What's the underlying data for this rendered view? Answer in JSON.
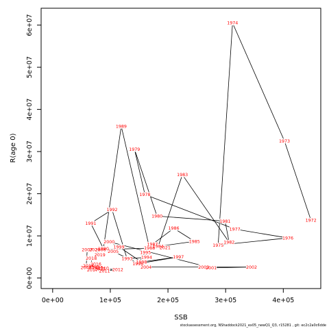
{
  "chart_data": {
    "type": "scatter",
    "xlabel": "SSB",
    "ylabel": "R(age 0)",
    "xlim": [
      -20000,
      465000
    ],
    "ylim": [
      -2500000,
      64000000
    ],
    "x_ticks": [
      0,
      100000,
      200000,
      300000,
      400000
    ],
    "x_tick_labels": [
      "0e+00",
      "1e+05",
      "2e+05",
      "3e+05",
      "4e+05"
    ],
    "y_ticks": [
      0,
      10000000,
      20000000,
      30000000,
      40000000,
      50000000,
      60000000
    ],
    "y_tick_labels": [
      "0e+00",
      "1e+07",
      "2e+07",
      "3e+07",
      "4e+07",
      "5e+07",
      "6e+07"
    ],
    "line_color": "#000000",
    "label_color": "#ff0000",
    "points": [
      {
        "year": "1972",
        "ssb": 448000,
        "rec": 13700000
      },
      {
        "year": "1973",
        "ssb": 402000,
        "rec": 32500000
      },
      {
        "year": "1974",
        "ssb": 312000,
        "rec": 60500000
      },
      {
        "year": "1975",
        "ssb": 287000,
        "rec": 7800000
      },
      {
        "year": "1976",
        "ssb": 408000,
        "rec": 9500000
      },
      {
        "year": "1977",
        "ssb": 316000,
        "rec": 11600000
      },
      {
        "year": "1978",
        "ssb": 160000,
        "rec": 19800000
      },
      {
        "year": "1979",
        "ssb": 142000,
        "rec": 30500000
      },
      {
        "year": "1980",
        "ssb": 181000,
        "rec": 14700000
      },
      {
        "year": "1981",
        "ssb": 299000,
        "rec": 13500000
      },
      {
        "year": "1982",
        "ssb": 306000,
        "rec": 8500000
      },
      {
        "year": "1983",
        "ssb": 225000,
        "rec": 24500000
      },
      {
        "year": "1984",
        "ssb": 183000,
        "rec": 7500000
      },
      {
        "year": "1985",
        "ssb": 246000,
        "rec": 8700000
      },
      {
        "year": "1986",
        "ssb": 210000,
        "rec": 11800000
      },
      {
        "year": "1987",
        "ssb": 173000,
        "rec": 8000000
      },
      {
        "year": "1988",
        "ssb": 168000,
        "rec": 7100000
      },
      {
        "year": "1989",
        "ssb": 119000,
        "rec": 36000000
      },
      {
        "year": "1990",
        "ssb": 88000,
        "rec": 7000000
      },
      {
        "year": "1991",
        "ssb": 66000,
        "rec": 13000000
      },
      {
        "year": "1992",
        "ssb": 103000,
        "rec": 16200000
      },
      {
        "year": "1993",
        "ssb": 129000,
        "rec": 4600000
      },
      {
        "year": "1994",
        "ssb": 163000,
        "rec": 4900000
      },
      {
        "year": "1995",
        "ssb": 161000,
        "rec": 6100000
      },
      {
        "year": "1996",
        "ssb": 148000,
        "rec": 3400000
      },
      {
        "year": "1997",
        "ssb": 218000,
        "rec": 5000000
      },
      {
        "year": "1998",
        "ssb": 154000,
        "rec": 3800000
      },
      {
        "year": "1999",
        "ssb": 115000,
        "rec": 7400000
      },
      {
        "year": "2000",
        "ssb": 98000,
        "rec": 8600000
      },
      {
        "year": "2001",
        "ssb": 275000,
        "rec": 2400000
      },
      {
        "year": "2002",
        "ssb": 345000,
        "rec": 2600000
      },
      {
        "year": "2003",
        "ssb": 262000,
        "rec": 2600000
      },
      {
        "year": "2004",
        "ssb": 162000,
        "rec": 2600000
      },
      {
        "year": "2005",
        "ssb": 105000,
        "rec": 6300000
      },
      {
        "year": "2006",
        "ssb": 83000,
        "rec": 6700000
      },
      {
        "year": "2007",
        "ssb": 60000,
        "rec": 6700000
      },
      {
        "year": "2008",
        "ssb": 58000,
        "rec": 2500000
      },
      {
        "year": "2009",
        "ssb": 72000,
        "rec": 2600000
      },
      {
        "year": "2010",
        "ssb": 88000,
        "rec": 2300000
      },
      {
        "year": "2011",
        "ssb": 90000,
        "rec": 1700000
      },
      {
        "year": "2012",
        "ssb": 113000,
        "rec": 2000000
      },
      {
        "year": "2013",
        "ssb": 82000,
        "rec": 2200000
      },
      {
        "year": "2014",
        "ssb": 62000,
        "rec": 2900000
      },
      {
        "year": "2015",
        "ssb": 78000,
        "rec": 2500000
      },
      {
        "year": "2016",
        "ssb": 75000,
        "rec": 3300000
      },
      {
        "year": "2017",
        "ssb": 69000,
        "rec": 1900000
      },
      {
        "year": "2018",
        "ssb": 67000,
        "rec": 4700000
      },
      {
        "year": "2019",
        "ssb": 82000,
        "rec": 5500000
      },
      {
        "year": "2020",
        "ssb": 73000,
        "rec": 6700000
      },
      {
        "year": "2021",
        "ssb": 195000,
        "rec": 7200000
      }
    ]
  },
  "footer_text": "stockassessment.org, NShaddock2021_ex05_newQ1_Q3, r15281 , git: ec2c2a0c6dde"
}
